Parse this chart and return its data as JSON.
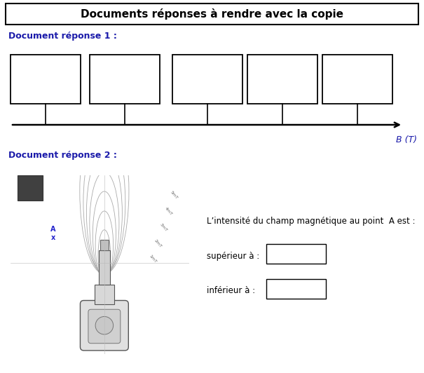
{
  "title": "Documents réponses à rendre avec la copie",
  "doc1_label": "Document réponse 1 :",
  "doc2_label": "Document réponse 2 :",
  "axis_label": "B (T)",
  "intensity_label": "L’intensité du champ magnétique au point  A est :",
  "superieur_label": "supérieur à :",
  "inferieur_label": "inférieur à :",
  "background_color": "#ffffff",
  "text_color": "#000000",
  "blue_color": "#1a1aaa",
  "dark_blue": "#1a1aaa",
  "title_fontsize": 11,
  "label_fontsize": 9,
  "body_fontsize": 8.5,
  "axis_fontsize": 9
}
